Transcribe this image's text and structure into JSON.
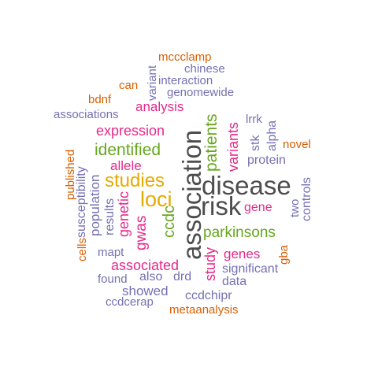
{
  "colors": {
    "dark_grey": "#4d4d4d",
    "purple": "#7570b3",
    "magenta": "#e7298a",
    "green": "#66a61e",
    "gold": "#e6ab02",
    "orange": "#d95f02",
    "background": "#ffffff"
  },
  "words": {
    "mccclamp": "mccclamp",
    "variant": "variant",
    "chinese": "chinese",
    "can": "can",
    "interaction": "interaction",
    "genomewide": "genomewide",
    "bdnf": "bdnf",
    "analysis": "analysis",
    "associations": "associations",
    "lrrk": "lrrk",
    "alpha": "alpha",
    "expression": "expression",
    "novel": "novel",
    "stk": "stk",
    "identified": "identified",
    "published": "published",
    "protein": "protein",
    "allele": "allele",
    "susceptibility": "susceptibility",
    "population": "population",
    "studies": "studies",
    "association": "association",
    "disease": "disease",
    "patients": "patients",
    "variants": "variants",
    "loci": "loci",
    "results": "results",
    "genetic": "genetic",
    "risk": "risk",
    "gene": "gene",
    "two": "two",
    "controls": "controls",
    "ccdc": "ccdc",
    "gwas": "gwas",
    "parkinsons": "parkinsons",
    "cells": "cells",
    "mapt": "mapt",
    "genes": "genes",
    "gba": "gba",
    "associated": "associated",
    "study": "study",
    "significant": "significant",
    "found": "found",
    "also": "also",
    "drd": "drd",
    "data": "data",
    "showed": "showed",
    "ccdchipr": "ccdchipr",
    "ccdcerap": "ccdcerap",
    "metaanalysis": "metaanalysis"
  }
}
